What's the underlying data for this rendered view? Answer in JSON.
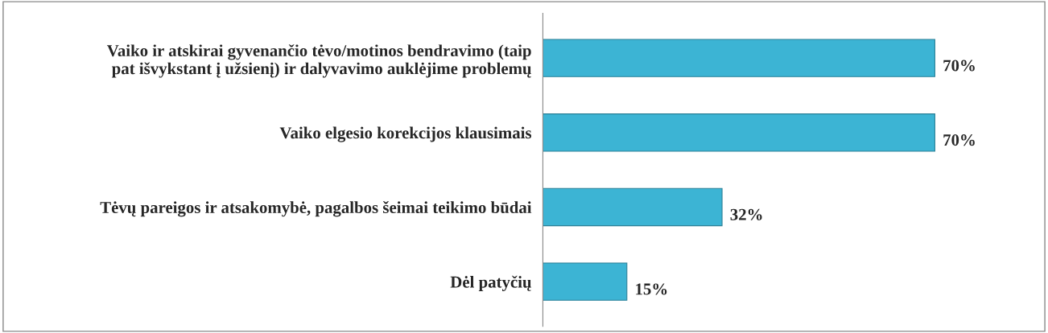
{
  "chart_data": {
    "type": "bar",
    "orientation": "horizontal",
    "categories": [
      "Vaiko ir atskirai gyvenančio tėvo/motinos bendravimo (taip\npat išvykstant į užsienį) ir dalyvavimo auklėjime problemų",
      "Vaiko elgesio korekcijos klausimais",
      "Tėvų pareigos ir atsakomybė, pagalbos šeimai teikimo būdai",
      "Dėl patyčių"
    ],
    "values": [
      70,
      70,
      32,
      15
    ],
    "value_labels": [
      "70%",
      "70%",
      "32%",
      "15%"
    ],
    "color": "#3cb4d4",
    "grid": false,
    "legend": false
  }
}
